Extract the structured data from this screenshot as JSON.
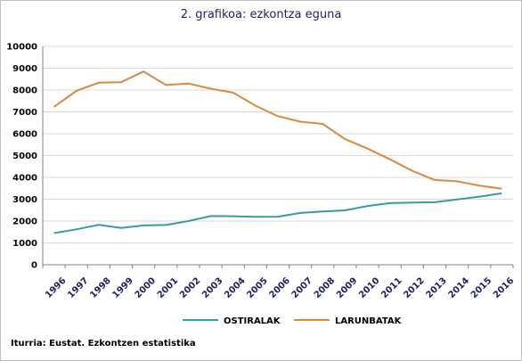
{
  "chart_data": {
    "type": "line",
    "title": "2. grafikoa: ezkontza eguna",
    "x": [
      "1996",
      "1997",
      "1998",
      "1999",
      "2000",
      "2001",
      "2002",
      "2003",
      "2004",
      "2005",
      "2006",
      "2007",
      "2008",
      "2009",
      "2010",
      "2011",
      "2012",
      "2013",
      "2014",
      "2015",
      "2016"
    ],
    "yticks": [
      "0",
      "1000",
      "2000",
      "3000",
      "4000",
      "5000",
      "6000",
      "7000",
      "8000",
      "9000",
      "10000"
    ],
    "ylim": [
      0,
      10000
    ],
    "grid": true,
    "legend_position": "bottom",
    "series": [
      {
        "name": "OSTIRALAK",
        "color": "#3a9aa8",
        "values": [
          1450,
          1620,
          1830,
          1680,
          1800,
          1820,
          2000,
          2230,
          2220,
          2190,
          2200,
          2370,
          2440,
          2490,
          2690,
          2820,
          2850,
          2860,
          2990,
          3120,
          3270
        ]
      },
      {
        "name": "LARUNBATAK",
        "color": "#d98a3e",
        "values": [
          7230,
          7960,
          8340,
          8360,
          8850,
          8230,
          8300,
          8060,
          7880,
          7280,
          6800,
          6550,
          6450,
          5750,
          5320,
          4830,
          4300,
          3880,
          3820,
          3620,
          3480
        ]
      }
    ],
    "source": "Iturria: Eustat. Ezkontzen estatistika"
  }
}
